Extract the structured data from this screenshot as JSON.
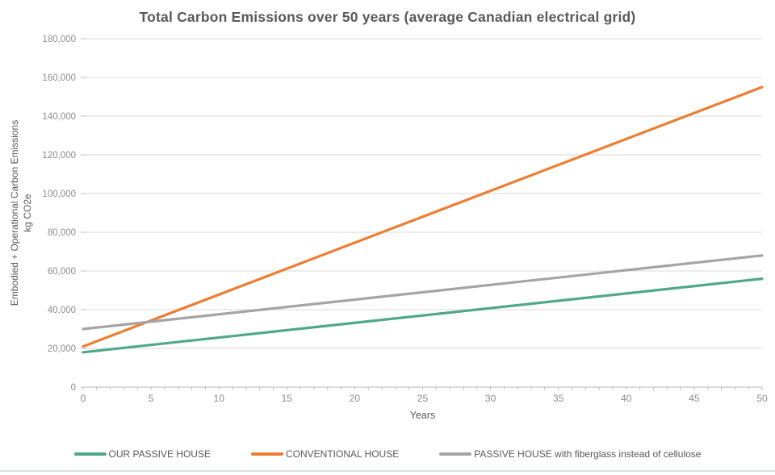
{
  "title": "Total Carbon Emissions over 50 years (average Canadian electrical grid)",
  "chart_data": {
    "type": "line",
    "title": "Total Carbon Emissions over 50 years (average Canadian electrical grid)",
    "xlabel": "Years",
    "ylabel_line1": "Embodied + Operational Carbon Emissions",
    "ylabel_line2": "kg CO2e",
    "xlim": [
      0,
      50
    ],
    "ylim": [
      0,
      180000
    ],
    "x": [
      0,
      50
    ],
    "series": [
      {
        "name": "OUR PASSIVE HOUSE",
        "color": "#4FA88C",
        "values": [
          18000,
          56000
        ]
      },
      {
        "name": "CONVENTIONAL HOUSE",
        "color": "#ED7D31",
        "values": [
          21000,
          155000
        ]
      },
      {
        "name": "PASSIVE HOUSE with fiberglass instead of cellulose",
        "color": "#A5A5A5",
        "values": [
          30000,
          68000
        ]
      }
    ],
    "y_tick_interval": 20000,
    "y_tick_labels": [
      "0",
      "20,000",
      "40,000",
      "60,000",
      "80,000",
      "100,000",
      "120,000",
      "140,000",
      "160,000",
      "180,000"
    ],
    "x_tick_interval": 5,
    "x_minor_tick_interval": 1,
    "x_tick_labels": [
      "0",
      "5",
      "10",
      "15",
      "20",
      "25",
      "30",
      "35",
      "40",
      "45",
      "50"
    ],
    "grid": "horizontal",
    "legend_position": "bottom"
  },
  "colors": {
    "background": "#FFFFFF",
    "title_text": "#595959",
    "axis_title_text": "#595959",
    "tick_text": "#8C8C8C",
    "gridline": "#DADADA",
    "axis_line": "#C6C6C6",
    "tick_mark": "#BFBFBF",
    "legend_text": "#595959",
    "divider": "#DADFE2"
  }
}
